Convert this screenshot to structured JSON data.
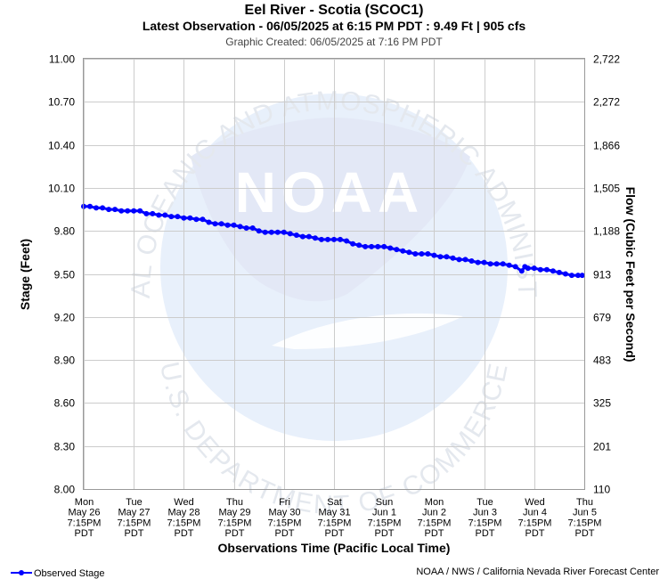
{
  "header": {
    "title": "Eel River - Scotia (SCOC1)",
    "subtitle": "Latest Observation - 06/05/2025 at 6:15 PM PDT : 9.49 Ft | 905 cfs",
    "created": "Graphic Created: 06/05/2025 at 7:16 PM PDT"
  },
  "watermark": {
    "logo_text": "NOAA",
    "ring_top": "NATIONAL OCEANIC AND ATMOSPHERIC ADMINISTRATION",
    "ring_bottom": "U.S. DEPARTMENT OF COMMERCE",
    "colors": {
      "ring": "#e4e8ee",
      "globe": "#e8f0fb",
      "bird": "#e3e8f6"
    }
  },
  "footer": {
    "legend_label": "Observed Stage",
    "credit": "NOAA / NWS / California Nevada River Forecast Center"
  },
  "chart_data": {
    "type": "line",
    "ylabel": "Stage (Feet)",
    "y2label": "Flow (Cubic Feet per Second)",
    "xlabel": "Observations Time (Pacific Local Time)",
    "ylim": [
      8.0,
      11.0
    ],
    "yticks": [
      "11.00",
      "10.70",
      "10.40",
      "10.10",
      "9.80",
      "9.50",
      "9.20",
      "8.90",
      "8.60",
      "8.30",
      "8.00"
    ],
    "y2ticks": [
      "2,722",
      "2,272",
      "1,866",
      "1,505",
      "1,188",
      "913",
      "679",
      "483",
      "325",
      "201",
      "110"
    ],
    "xticks": [
      [
        "Mon",
        "May 26",
        "7:15PM",
        "PDT"
      ],
      [
        "Tue",
        "May 27",
        "7:15PM",
        "PDT"
      ],
      [
        "Wed",
        "May 28",
        "7:15PM",
        "PDT"
      ],
      [
        "Thu",
        "May 29",
        "7:15PM",
        "PDT"
      ],
      [
        "Fri",
        "May 30",
        "7:15PM",
        "PDT"
      ],
      [
        "Sat",
        "May 31",
        "7:15PM",
        "PDT"
      ],
      [
        "Sun",
        "Jun 1",
        "7:15PM",
        "PDT"
      ],
      [
        "Mon",
        "Jun 2",
        "7:15PM",
        "PDT"
      ],
      [
        "Tue",
        "Jun 3",
        "7:15PM",
        "PDT"
      ],
      [
        "Wed",
        "Jun 4",
        "7:15PM",
        "PDT"
      ],
      [
        "Thu",
        "Jun 5",
        "7:15PM",
        "PDT"
      ]
    ],
    "grid": true,
    "legend": "bottom-left",
    "series": [
      {
        "name": "Observed Stage",
        "color": "#0000ff",
        "points": [
          [
            "May 26 7:15PM",
            9.97
          ],
          [
            "May 26 10:15PM",
            9.97
          ],
          [
            "May 27 1:15AM",
            9.96
          ],
          [
            "May 27 4:15AM",
            9.96
          ],
          [
            "May 27 7:15AM",
            9.95
          ],
          [
            "May 27 10:15AM",
            9.95
          ],
          [
            "May 27 1:15PM",
            9.94
          ],
          [
            "May 27 4:15PM",
            9.94
          ],
          [
            "May 27 7:15PM",
            9.94
          ],
          [
            "May 27 10:15PM",
            9.94
          ],
          [
            "May 28 1:15AM",
            9.92
          ],
          [
            "May 28 4:15AM",
            9.92
          ],
          [
            "May 28 7:15AM",
            9.91
          ],
          [
            "May 28 10:15AM",
            9.91
          ],
          [
            "May 28 1:15PM",
            9.9
          ],
          [
            "May 28 4:15PM",
            9.9
          ],
          [
            "May 28 7:15PM",
            9.89
          ],
          [
            "May 28 10:15PM",
            9.89
          ],
          [
            "May 29 1:15AM",
            9.88
          ],
          [
            "May 29 4:15AM",
            9.88
          ],
          [
            "May 29 7:15AM",
            9.86
          ],
          [
            "May 29 10:15AM",
            9.85
          ],
          [
            "May 29 1:15PM",
            9.85
          ],
          [
            "May 29 4:15PM",
            9.84
          ],
          [
            "May 29 7:15PM",
            9.84
          ],
          [
            "May 29 10:15PM",
            9.83
          ],
          [
            "May 30 1:15AM",
            9.82
          ],
          [
            "May 30 4:15AM",
            9.82
          ],
          [
            "May 30 7:15AM",
            9.8
          ],
          [
            "May 30 10:15AM",
            9.79
          ],
          [
            "May 30 1:15PM",
            9.79
          ],
          [
            "May 30 4:15PM",
            9.79
          ],
          [
            "May 30 7:15PM",
            9.79
          ],
          [
            "May 30 10:15PM",
            9.78
          ],
          [
            "May 31 1:15AM",
            9.77
          ],
          [
            "May 31 4:15AM",
            9.76
          ],
          [
            "May 31 7:15AM",
            9.76
          ],
          [
            "May 31 10:15AM",
            9.75
          ],
          [
            "May 31 1:15PM",
            9.74
          ],
          [
            "May 31 4:15PM",
            9.74
          ],
          [
            "May 31 7:15PM",
            9.74
          ],
          [
            "May 31 10:15PM",
            9.74
          ],
          [
            "Jun 1 1:15AM",
            9.73
          ],
          [
            "Jun 1 4:15AM",
            9.71
          ],
          [
            "Jun 1 7:15AM",
            9.7
          ],
          [
            "Jun 1 10:15AM",
            9.69
          ],
          [
            "Jun 1 1:15PM",
            9.69
          ],
          [
            "Jun 1 4:15PM",
            9.69
          ],
          [
            "Jun 1 7:15PM",
            9.69
          ],
          [
            "Jun 1 10:15PM",
            9.68
          ],
          [
            "Jun 2 1:15AM",
            9.67
          ],
          [
            "Jun 2 4:15AM",
            9.66
          ],
          [
            "Jun 2 7:15AM",
            9.65
          ],
          [
            "Jun 2 10:15AM",
            9.64
          ],
          [
            "Jun 2 1:15PM",
            9.64
          ],
          [
            "Jun 2 4:15PM",
            9.64
          ],
          [
            "Jun 2 7:15PM",
            9.63
          ],
          [
            "Jun 2 10:15PM",
            9.62
          ],
          [
            "Jun 3 1:15AM",
            9.62
          ],
          [
            "Jun 3 4:15AM",
            9.61
          ],
          [
            "Jun 3 7:15AM",
            9.6
          ],
          [
            "Jun 3 10:15AM",
            9.6
          ],
          [
            "Jun 3 1:15PM",
            9.59
          ],
          [
            "Jun 3 4:15PM",
            9.58
          ],
          [
            "Jun 3 7:15PM",
            9.58
          ],
          [
            "Jun 3 10:15PM",
            9.57
          ],
          [
            "Jun 4 1:15AM",
            9.57
          ],
          [
            "Jun 4 4:15AM",
            9.57
          ],
          [
            "Jun 4 7:15AM",
            9.56
          ],
          [
            "Jun 4 10:15AM",
            9.55
          ],
          [
            "Jun 4 1:15PM",
            9.52
          ],
          [
            "Jun 4 2:45PM",
            9.55
          ],
          [
            "Jun 4 4:15PM",
            9.54
          ],
          [
            "Jun 4 7:15PM",
            9.54
          ],
          [
            "Jun 4 10:15PM",
            9.53
          ],
          [
            "Jun 5 1:15AM",
            9.53
          ],
          [
            "Jun 5 4:15AM",
            9.52
          ],
          [
            "Jun 5 7:15AM",
            9.51
          ],
          [
            "Jun 5 10:15AM",
            9.5
          ],
          [
            "Jun 5 1:15PM",
            9.49
          ],
          [
            "Jun 5 4:15PM",
            9.49
          ],
          [
            "Jun 5 6:15PM",
            9.49
          ]
        ]
      }
    ]
  }
}
